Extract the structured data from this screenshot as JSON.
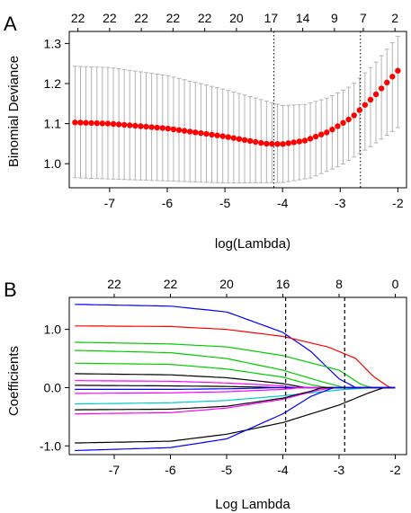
{
  "chart_data": [
    {
      "panel": "A",
      "type": "scatter",
      "xlabel": "log(Lambda)",
      "ylabel": "Binomial Deviance",
      "xlim": [
        -7.7,
        -1.85
      ],
      "ylim": [
        0.94,
        1.33
      ],
      "x_ticks": [
        "-7",
        "-6",
        "-5",
        "-4",
        "-3",
        "-2"
      ],
      "x_tick_values": [
        -7,
        -6,
        -5,
        -4,
        -3,
        -2
      ],
      "y_ticks": [
        "1.0",
        "1.1",
        "1.2",
        "1.3"
      ],
      "y_tick_values": [
        1.0,
        1.1,
        1.2,
        1.3
      ],
      "top_ticks": [
        "22",
        "22",
        "22",
        "22",
        "22",
        "20",
        "17",
        "14",
        "9",
        "7",
        "2"
      ],
      "top_tick_x": [
        -7.55,
        -7.0,
        -6.45,
        -5.9,
        -5.35,
        -4.8,
        -4.2,
        -3.65,
        -3.1,
        -2.6,
        -2.05
      ],
      "vlines": [
        -4.15,
        -2.65
      ],
      "point_color": "#ff0000",
      "errorbar_color": "#b3b3b3",
      "series": [
        {
          "x_start": -7.6,
          "x_end": -2.0,
          "n": 60,
          "mean_key": [
            [
              -7.6,
              1.103
            ],
            [
              -7.0,
              1.1
            ],
            [
              -6.0,
              1.088
            ],
            [
              -5.0,
              1.068
            ],
            [
              -4.3,
              1.05
            ],
            [
              -4.0,
              1.049
            ],
            [
              -3.6,
              1.058
            ],
            [
              -3.2,
              1.08
            ],
            [
              -2.8,
              1.115
            ],
            [
              -2.4,
              1.17
            ],
            [
              -2.0,
              1.232
            ]
          ],
          "lower_key": [
            [
              -7.6,
              0.965
            ],
            [
              -7.0,
              0.962
            ],
            [
              -6.0,
              0.957
            ],
            [
              -5.0,
              0.952
            ],
            [
              -4.0,
              0.953
            ],
            [
              -3.5,
              0.965
            ],
            [
              -3.0,
              0.995
            ],
            [
              -2.5,
              1.04
            ],
            [
              -2.0,
              1.09
            ]
          ],
          "upper_key": [
            [
              -7.6,
              1.243
            ],
            [
              -7.0,
              1.24
            ],
            [
              -6.0,
              1.22
            ],
            [
              -5.0,
              1.185
            ],
            [
              -4.0,
              1.145
            ],
            [
              -3.6,
              1.148
            ],
            [
              -3.2,
              1.165
            ],
            [
              -2.8,
              1.195
            ],
            [
              -2.4,
              1.25
            ],
            [
              -2.0,
              1.318
            ]
          ]
        }
      ]
    },
    {
      "panel": "B",
      "type": "line",
      "xlabel": "Log Lambda",
      "ylabel": "Coefficients",
      "xlim": [
        -7.8,
        -1.8
      ],
      "ylim": [
        -1.15,
        1.55
      ],
      "x_ticks": [
        "-7",
        "-6",
        "-5",
        "-4",
        "-3",
        "-2"
      ],
      "x_tick_values": [
        -7,
        -6,
        -5,
        -4,
        -3,
        -2
      ],
      "y_ticks": [
        "-1.0",
        "0.0",
        "1.0"
      ],
      "y_tick_values": [
        -1.0,
        0.0,
        1.0
      ],
      "top_ticks": [
        "22",
        "22",
        "20",
        "16",
        "8",
        "0"
      ],
      "top_tick_x": [
        -7.0,
        -6.0,
        -5.0,
        -4.0,
        -3.0,
        -2.0
      ],
      "vlines": [
        -3.95,
        -2.9
      ],
      "series": [
        {
          "color": "#0000ff",
          "values": [
            [
              -7.7,
              1.43
            ],
            [
              -6.0,
              1.4
            ],
            [
              -5.0,
              1.3
            ],
            [
              -4.0,
              0.95
            ],
            [
              -3.5,
              0.62
            ],
            [
              -3.0,
              0.15
            ],
            [
              -2.7,
              0.0
            ],
            [
              -2.0,
              0.0
            ]
          ]
        },
        {
          "color": "#ff0000",
          "values": [
            [
              -7.7,
              1.06
            ],
            [
              -6.0,
              1.05
            ],
            [
              -5.0,
              1.0
            ],
            [
              -4.0,
              0.88
            ],
            [
              -3.2,
              0.7
            ],
            [
              -2.7,
              0.5
            ],
            [
              -2.4,
              0.2
            ],
            [
              -2.1,
              0.0
            ],
            [
              -2.0,
              0.0
            ]
          ]
        },
        {
          "color": "#00cc00",
          "values": [
            [
              -7.7,
              0.78
            ],
            [
              -6.0,
              0.75
            ],
            [
              -5.0,
              0.7
            ],
            [
              -4.0,
              0.55
            ],
            [
              -3.0,
              0.3
            ],
            [
              -2.6,
              0.05
            ],
            [
              -2.4,
              0.0
            ],
            [
              -2.0,
              0.0
            ]
          ]
        },
        {
          "color": "#00cc00",
          "values": [
            [
              -7.7,
              0.64
            ],
            [
              -6.0,
              0.6
            ],
            [
              -5.0,
              0.5
            ],
            [
              -4.0,
              0.3
            ],
            [
              -3.3,
              0.1
            ],
            [
              -2.9,
              0.0
            ],
            [
              -2.0,
              0.0
            ]
          ]
        },
        {
          "color": "#00cc00",
          "values": [
            [
              -7.7,
              0.42
            ],
            [
              -6.0,
              0.4
            ],
            [
              -5.0,
              0.32
            ],
            [
              -4.0,
              0.18
            ],
            [
              -3.5,
              0.05
            ],
            [
              -3.2,
              0.0
            ],
            [
              -2.0,
              0.0
            ]
          ]
        },
        {
          "color": "#000000",
          "values": [
            [
              -7.7,
              0.24
            ],
            [
              -6.0,
              0.22
            ],
            [
              -5.0,
              0.17
            ],
            [
              -4.0,
              0.07
            ],
            [
              -3.6,
              0.0
            ],
            [
              -2.0,
              0.0
            ]
          ]
        },
        {
          "color": "#ff00ff",
          "values": [
            [
              -7.7,
              0.12
            ],
            [
              -6.0,
              0.11
            ],
            [
              -5.0,
              0.08
            ],
            [
              -4.0,
              0.03
            ],
            [
              -3.8,
              0.0
            ],
            [
              -2.0,
              0.0
            ]
          ]
        },
        {
          "color": "#000000",
          "values": [
            [
              -7.7,
              0.04
            ],
            [
              -6.0,
              0.03
            ],
            [
              -5.0,
              0.02
            ],
            [
              -4.0,
              0.0
            ],
            [
              -2.0,
              0.0
            ]
          ]
        },
        {
          "color": "#0000ff",
          "values": [
            [
              -7.7,
              -0.03
            ],
            [
              -6.0,
              -0.03
            ],
            [
              -5.0,
              -0.02
            ],
            [
              -4.0,
              0.0
            ],
            [
              -2.0,
              0.0
            ]
          ]
        },
        {
          "color": "#ff00ff",
          "values": [
            [
              -7.7,
              -0.1
            ],
            [
              -6.0,
              -0.09
            ],
            [
              -5.0,
              -0.07
            ],
            [
              -4.0,
              -0.03
            ],
            [
              -3.7,
              0.0
            ],
            [
              -2.0,
              0.0
            ]
          ]
        },
        {
          "color": "#00cccc",
          "values": [
            [
              -7.7,
              -0.28
            ],
            [
              -6.0,
              -0.26
            ],
            [
              -5.0,
              -0.22
            ],
            [
              -4.0,
              -0.14
            ],
            [
              -3.0,
              -0.04
            ],
            [
              -2.4,
              0.0
            ],
            [
              -2.0,
              0.0
            ]
          ]
        },
        {
          "color": "#ff00ff",
          "values": [
            [
              -7.7,
              -0.45
            ],
            [
              -6.0,
              -0.43
            ],
            [
              -5.0,
              -0.35
            ],
            [
              -4.0,
              -0.2
            ],
            [
              -3.4,
              -0.05
            ],
            [
              -3.1,
              0.0
            ],
            [
              -2.0,
              0.0
            ]
          ]
        },
        {
          "color": "#000000",
          "values": [
            [
              -7.7,
              -0.38
            ],
            [
              -6.0,
              -0.37
            ],
            [
              -5.0,
              -0.32
            ],
            [
              -4.0,
              -0.18
            ],
            [
              -3.5,
              -0.06
            ],
            [
              -3.3,
              0.0
            ],
            [
              -2.0,
              0.0
            ]
          ]
        },
        {
          "color": "#000000",
          "values": [
            [
              -7.7,
              -0.95
            ],
            [
              -6.0,
              -0.92
            ],
            [
              -5.0,
              -0.8
            ],
            [
              -4.0,
              -0.6
            ],
            [
              -3.0,
              -0.3
            ],
            [
              -2.5,
              -0.1
            ],
            [
              -2.2,
              0.0
            ],
            [
              -2.0,
              0.0
            ]
          ]
        },
        {
          "color": "#0000ff",
          "values": [
            [
              -7.7,
              -1.08
            ],
            [
              -6.0,
              -1.03
            ],
            [
              -5.0,
              -0.88
            ],
            [
              -4.0,
              -0.45
            ],
            [
              -3.5,
              -0.15
            ],
            [
              -3.1,
              0.0
            ],
            [
              -2.0,
              0.0
            ]
          ]
        }
      ]
    }
  ]
}
